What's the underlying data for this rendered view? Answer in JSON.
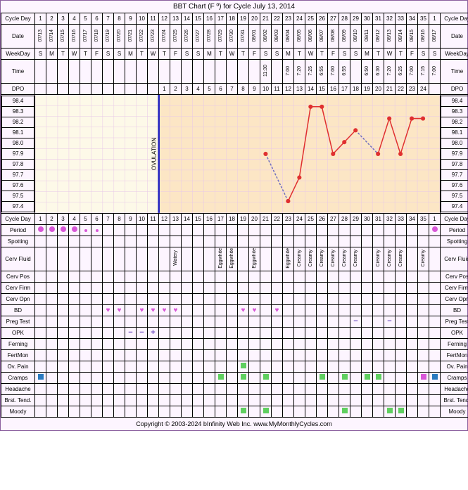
{
  "title": "BBT Chart (F º) for Cycle July 13, 2014",
  "footer": "Copyright © 2003-2024 bInfinity Web Inc.    www.MyMonthlyCycles.com",
  "labels": {
    "cycleDay": "Cycle Day",
    "date": "Date",
    "weekday": "WeekDay",
    "time": "Time",
    "dpo": "DPO",
    "period": "Period",
    "spotting": "Spotting",
    "cervFluid": "Cerv Fluid",
    "cervPos": "Cerv Pos",
    "cervFirm": "Cerv Firm",
    "cervOpn": "Cerv Opn",
    "bd": "BD",
    "pregTest": "Preg Test",
    "opk": "OPK",
    "ferning": "Ferning",
    "fertMon": "FertMon",
    "ovPain": "Ov. Pain",
    "cramps": "Cramps",
    "headache": "Headache",
    "brstTend": "Brst. Tend.",
    "moody": "Moody",
    "ovulation": "OVULATION"
  },
  "colors": {
    "bg_preov": "#fdf9e8",
    "bg_postov": "#fce6c5",
    "ov_line": "#2020c0",
    "point": "#e03030",
    "line": "#e03030",
    "dash": "#7070c0",
    "grid": "#e8c8e8",
    "period": "#d857d8",
    "cramps": "#5fcf5f",
    "moody": "#5fcf5f"
  },
  "days": 36,
  "cycleDays": [
    1,
    2,
    3,
    4,
    5,
    6,
    7,
    8,
    9,
    10,
    11,
    12,
    13,
    14,
    15,
    16,
    17,
    18,
    19,
    20,
    21,
    22,
    23,
    24,
    25,
    26,
    27,
    28,
    29,
    30,
    31,
    32,
    33,
    34,
    35,
    1
  ],
  "dates": [
    "07/13",
    "07/14",
    "07/15",
    "07/16",
    "07/17",
    "07/18",
    "07/19",
    "07/20",
    "07/21",
    "07/22",
    "07/23",
    "07/24",
    "07/25",
    "07/26",
    "07/27",
    "07/28",
    "07/29",
    "07/30",
    "07/31",
    "08/01",
    "08/02",
    "08/03",
    "08/04",
    "08/05",
    "08/06",
    "08/07",
    "08/08",
    "08/09",
    "08/10",
    "08/11",
    "08/12",
    "08/13",
    "08/14",
    "08/15",
    "08/16",
    "08/17"
  ],
  "weekdays": [
    "S",
    "M",
    "T",
    "W",
    "T",
    "F",
    "S",
    "S",
    "M",
    "T",
    "W",
    "T",
    "F",
    "S",
    "S",
    "M",
    "T",
    "W",
    "T",
    "F",
    "S",
    "S",
    "M",
    "T",
    "W",
    "T",
    "F",
    "S",
    "S",
    "M",
    "T",
    "W",
    "T",
    "F",
    "S",
    "S"
  ],
  "times": [
    "",
    "",
    "",
    "",
    "",
    "",
    "",
    "",
    "",
    "",
    "",
    "",
    "",
    "",
    "",
    "",
    "",
    "",
    "",
    "",
    "11:30",
    "",
    "7:00",
    "7:20",
    "7:25",
    "6:55",
    "7:00",
    "6:55",
    "",
    "6:50",
    "6:30",
    "7:20",
    "6:25",
    "7:00",
    "7:15",
    "7:00"
  ],
  "dpo": [
    "",
    "",
    "",
    "",
    "",
    "",
    "",
    "",
    "",
    "",
    "",
    "1",
    "2",
    "3",
    "4",
    "5",
    "6",
    "7",
    "8",
    "9",
    "10",
    "11",
    "12",
    "13",
    "14",
    "15",
    "16",
    "17",
    "18",
    "19",
    "20",
    "21",
    "22",
    "23",
    "24",
    ""
  ],
  "dpoStart": 12,
  "chart": {
    "yticks": [
      98.4,
      98.3,
      98.2,
      98.1,
      98.0,
      97.9,
      97.8,
      97.7,
      97.6,
      97.5,
      97.4
    ],
    "ylim": [
      97.4,
      98.4
    ],
    "ovulationDay": 11,
    "preov_end": 11,
    "points": [
      {
        "day": 21,
        "y": 97.9
      },
      {
        "day": 23,
        "y": 97.5
      },
      {
        "day": 24,
        "y": 97.7
      },
      {
        "day": 25,
        "y": 98.3
      },
      {
        "day": 26,
        "y": 98.3
      },
      {
        "day": 27,
        "y": 97.9
      },
      {
        "day": 28,
        "y": 98.0
      },
      {
        "day": 29,
        "y": 98.1
      },
      {
        "day": 31,
        "y": 97.9
      },
      {
        "day": 32,
        "y": 98.2
      },
      {
        "day": 33,
        "y": 97.9
      },
      {
        "day": 34,
        "y": 98.2
      },
      {
        "day": 35,
        "y": 98.2
      }
    ],
    "segments": [
      {
        "from": 21,
        "to": 23,
        "dash": true
      },
      {
        "from": 23,
        "to": 24,
        "dash": false
      },
      {
        "from": 24,
        "to": 25,
        "dash": false
      },
      {
        "from": 25,
        "to": 26,
        "dash": false
      },
      {
        "from": 26,
        "to": 27,
        "dash": false
      },
      {
        "from": 27,
        "to": 28,
        "dash": false
      },
      {
        "from": 28,
        "to": 29,
        "dash": false
      },
      {
        "from": 29,
        "to": 31,
        "dash": true
      },
      {
        "from": 31,
        "to": 32,
        "dash": false
      },
      {
        "from": 32,
        "to": 33,
        "dash": false
      },
      {
        "from": 33,
        "to": 34,
        "dash": false
      },
      {
        "from": 34,
        "to": 35,
        "dash": false
      }
    ]
  },
  "period": {
    "1": "full",
    "2": "full",
    "3": "full",
    "4": "full",
    "5": "small",
    "6": "tiny"
  },
  "periodLast": {
    "36": "full"
  },
  "cervFluid": {
    "13": "Watery",
    "17": "Eggwhite",
    "18": "Eggwhite",
    "20": "Eggwhite",
    "23": "Eggwhite",
    "24": "Creamy",
    "25": "Creamy",
    "26": "Creamy",
    "27": "Creamy",
    "28": "Creamy",
    "29": "Creamy",
    "31": "Creamy",
    "32": "Creamy",
    "33": "Creamy",
    "35": "Creamy"
  },
  "bd": {
    "7": "♥",
    "8": "♥",
    "10": "♥",
    "11": "♥",
    "12": "♥",
    "13": "♥",
    "19": "♥",
    "20": "♥",
    "22": "♥"
  },
  "pregTest": {
    "29": "−",
    "32": "−"
  },
  "opk": {
    "9": "−",
    "10": "−",
    "11": "+"
  },
  "ovPain": {
    "19": "sq"
  },
  "cramps": {
    "1": "dark",
    "17": "g",
    "19": "g",
    "21": "g",
    "26": "g",
    "28": "g",
    "30": "g",
    "31": "g",
    "35": "pink",
    "36": "dark"
  },
  "moody": {
    "19": "g",
    "21": "g",
    "28": "g",
    "32": "g",
    "33": "g"
  }
}
